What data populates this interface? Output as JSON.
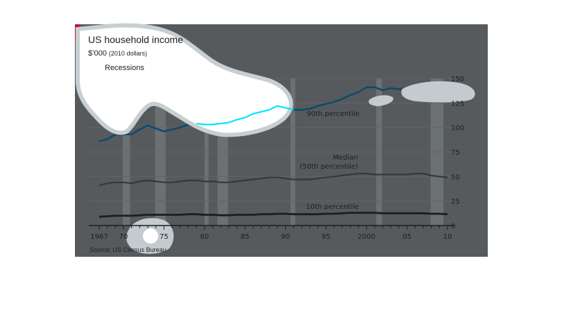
{
  "chart_data": {
    "type": "line",
    "title": "US household income",
    "subtitle_main": "$’000",
    "subtitle_paren": "(2010 dollars)",
    "legend": {
      "recessions_label": "Recessions"
    },
    "source": "Source: US Census Bureau",
    "ylim": [
      0,
      150
    ],
    "yticks": [
      "0",
      "25",
      "50",
      "75",
      "100",
      "125",
      "150"
    ],
    "xlim": [
      1967,
      2010
    ],
    "xtick_labels": [
      {
        "year": 1967,
        "label": "1967"
      },
      {
        "year": 1970,
        "label": "70"
      },
      {
        "year": 1975,
        "label": "75"
      },
      {
        "year": 1980,
        "label": "80"
      },
      {
        "year": 1985,
        "label": "85"
      },
      {
        "year": 1990,
        "label": "90"
      },
      {
        "year": 1995,
        "label": "95"
      },
      {
        "year": 2000,
        "label": "2000"
      },
      {
        "year": 2005,
        "label": "05"
      },
      {
        "year": 2010,
        "label": "10"
      }
    ],
    "recessions": [
      [
        1969.9,
        1970.8
      ],
      [
        1973.9,
        1975.2
      ],
      [
        1980.0,
        1980.5
      ],
      [
        1981.6,
        1982.9
      ],
      [
        1990.6,
        1991.2
      ],
      [
        2001.2,
        2001.9
      ],
      [
        2007.9,
        2009.5
      ]
    ],
    "x": [
      1967,
      1968,
      1969,
      1970,
      1971,
      1972,
      1973,
      1974,
      1975,
      1976,
      1977,
      1978,
      1979,
      1980,
      1981,
      1982,
      1983,
      1984,
      1985,
      1986,
      1987,
      1988,
      1989,
      1990,
      1991,
      1992,
      1993,
      1994,
      1995,
      1996,
      1997,
      1998,
      1999,
      2000,
      2001,
      2002,
      2003,
      2004,
      2005,
      2006,
      2007,
      2008,
      2009,
      2010
    ],
    "series": [
      {
        "name": "90th percentile",
        "values": [
          86,
          88,
          93,
          93,
          93,
          98,
          102,
          99,
          96,
          98,
          100,
          103,
          104,
          103,
          103,
          104,
          105,
          108,
          110,
          114,
          116,
          118,
          122,
          120,
          118,
          118,
          119,
          122,
          124,
          126,
          129,
          133,
          136,
          141,
          141,
          138,
          140,
          139,
          140,
          141,
          144,
          142,
          139,
          138
        ]
      },
      {
        "name": "Median",
        "label_lines": [
          "Median",
          "(50th percentile)"
        ],
        "values": [
          41,
          43,
          44,
          44,
          43,
          45,
          46,
          45,
          44,
          44,
          45,
          46,
          46,
          45,
          45,
          44,
          44,
          45,
          46,
          47,
          48,
          49,
          49,
          48,
          47,
          47,
          47,
          48,
          49,
          50,
          51,
          52,
          53,
          53,
          52,
          52,
          52,
          52,
          52,
          53,
          53,
          51,
          50,
          49
        ]
      },
      {
        "name": "10th percentile",
        "values": [
          9,
          9.5,
          10,
          10,
          10,
          10.5,
          11,
          11,
          11,
          11,
          11,
          11.5,
          11.5,
          11,
          11,
          10.5,
          10.5,
          11,
          11,
          11,
          11.5,
          11.5,
          12,
          12,
          11.5,
          11.5,
          11.5,
          11.5,
          12,
          12,
          12.5,
          13,
          13,
          13,
          13,
          12.5,
          12.5,
          12.5,
          12.5,
          12.5,
          12.5,
          12,
          12,
          11.5
        ]
      }
    ]
  },
  "colors": {
    "background": "#565a5c",
    "series_90": "#0d4b6e",
    "series_median": "#34393b",
    "series_10": "#1a1e20",
    "recession": "#6b7073",
    "axis": "#1a1e20",
    "text": "#1c1f21",
    "accent_cyan": "#00e5ff",
    "brand_red": "#c8102e"
  }
}
